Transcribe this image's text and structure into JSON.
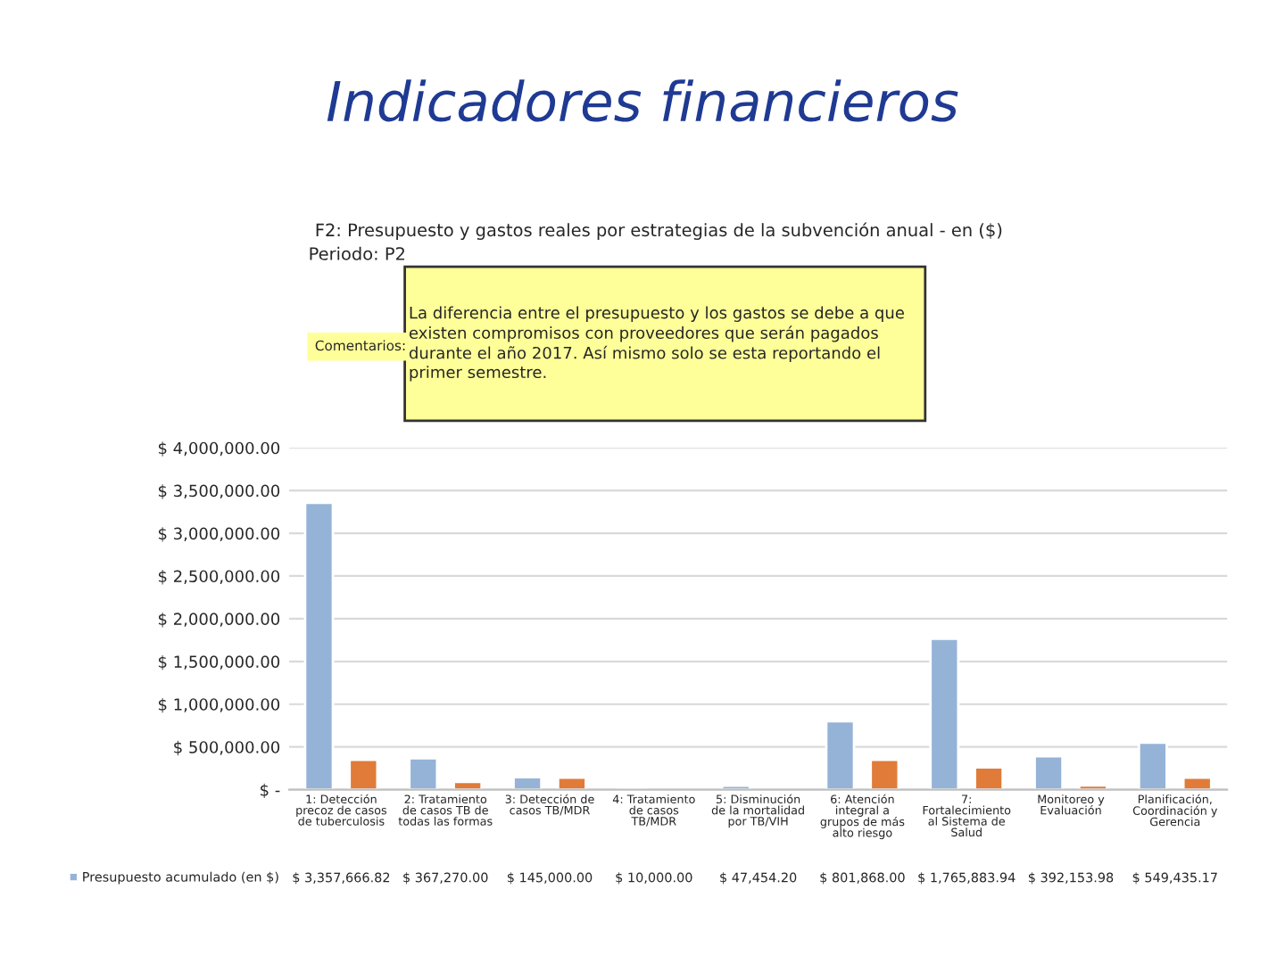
{
  "chart_data": {
    "type": "bar",
    "title": "Indicadores financieros",
    "subtitle": "F2: Presupuesto y gastos reales por estrategias de la subvención anual - en ($)",
    "annotations": [
      "Periodo: P2",
      "Comentarios:",
      "La diferencia entre el presupuesto y los gastos se debe a que\nexisten compromisos con proveedores que serán pagados\ndurante el año 2017. Así mismo solo se esta reportando el\nprimer semestre."
    ],
    "categories": [
      "1: Detección\nprecoz de casos\nde tuberculosis",
      "2: Tratamiento\nde casos TB de\ntodas las formas",
      "3: Detección de\ncasos TB/MDR",
      "4: Tratamiento\nde casos\nTB/MDR",
      "5: Disminución\nde la mortalidad\npor TB/VIH",
      "6: Atención\nintegral a\ngrupos de más\nalto riesgo",
      "7:\nFortalecimiento\nal Sistema de\nSalud",
      "Monitoreo y\nEvaluación",
      "Planificación,\nCoordinación y\nGerencia"
    ],
    "series": [
      {
        "name": "Presupuesto acumulado (en $)",
        "color": "#95b3d7",
        "values": [
          3357666.82,
          367270.0,
          145000.0,
          10000.0,
          47454.2,
          801868.0,
          1765883.94,
          392153.98,
          549435.17
        ],
        "value_labels": [
          "$ 3,357,666.82",
          "$ 367,270.00",
          "$ 145,000.00",
          "$ 10,000.00",
          "$ 47,454.20",
          "$ 801,868.00",
          "$ 1,765,883.94",
          "$ 392,153.98",
          "$ 549,435.17"
        ]
      },
      {
        "color": "#e07b39",
        "values": [
          350000,
          90000,
          140000,
          null,
          null,
          350000,
          260000,
          50000,
          140000
        ]
      }
    ],
    "ylim": [
      0,
      4000000
    ],
    "yticks": [
      {
        "value": 0,
        "label": "$ -"
      },
      {
        "value": 500000,
        "label": "$ 500,000.00"
      },
      {
        "value": 1000000,
        "label": "$ 1,000,000.00"
      },
      {
        "value": 1500000,
        "label": "$ 1,500,000.00"
      },
      {
        "value": 2000000,
        "label": "$ 2,000,000.00"
      },
      {
        "value": 2500000,
        "label": "$ 2,500,000.00"
      },
      {
        "value": 3000000,
        "label": "$ 3,000,000.00"
      },
      {
        "value": 3500000,
        "label": "$ 3,500,000.00"
      },
      {
        "value": 4000000,
        "label": "$ 4,000,000.00"
      }
    ],
    "grid": "y",
    "legend": "bottom left"
  }
}
